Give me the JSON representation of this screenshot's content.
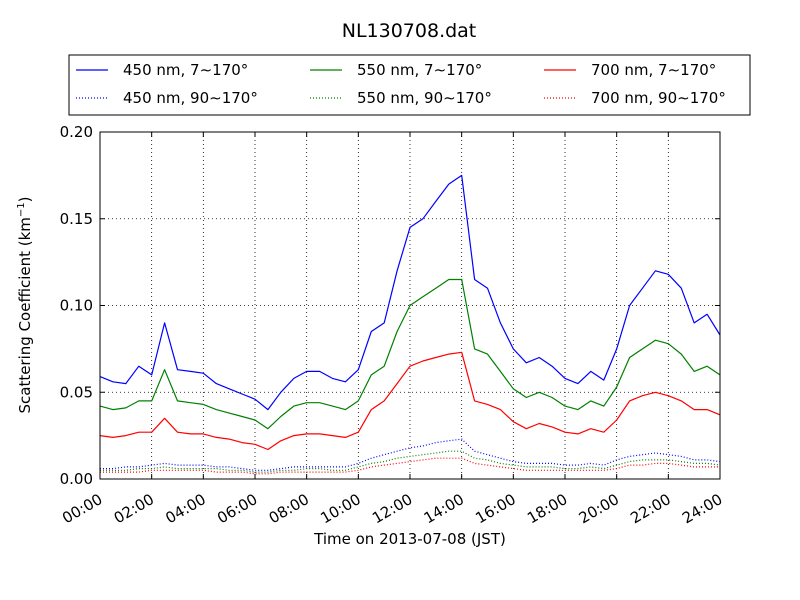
{
  "chart_data": {
    "type": "line",
    "title": "NL130708.dat",
    "xlabel": "Time on 2013-07-08 (JST)",
    "ylabel_main": "Scattering Coefficient (km",
    "ylabel_sup": "−1",
    "ylabel_tail": ")",
    "xlim": [
      0,
      24
    ],
    "ylim": [
      0.0,
      0.2
    ],
    "x_ticks": [
      0,
      2,
      4,
      6,
      8,
      10,
      12,
      14,
      16,
      18,
      20,
      22,
      24
    ],
    "x_tick_labels": [
      "00:00",
      "02:00",
      "04:00",
      "06:00",
      "08:00",
      "10:00",
      "12:00",
      "14:00",
      "16:00",
      "18:00",
      "20:00",
      "22:00",
      "24:00"
    ],
    "y_ticks": [
      0.0,
      0.05,
      0.1,
      0.15,
      0.2
    ],
    "y_tick_labels": [
      "0.00",
      "0.05",
      "0.10",
      "0.15",
      "0.20"
    ],
    "grid": true,
    "legend_placement": "above plot",
    "x": [
      0,
      0.5,
      1,
      1.5,
      2,
      2.5,
      3,
      3.5,
      4,
      4.5,
      5,
      5.5,
      6,
      6.5,
      7,
      7.5,
      8,
      8.5,
      9,
      9.5,
      10,
      10.5,
      11,
      11.5,
      12,
      12.5,
      13,
      13.5,
      14,
      14.5,
      15,
      15.5,
      16,
      16.5,
      17,
      17.5,
      18,
      18.5,
      19,
      19.5,
      20,
      20.5,
      21,
      21.5,
      22,
      22.5,
      23,
      23.5,
      24
    ],
    "series": [
      {
        "name": "450 nm, 7∼170°",
        "color": "#0000ff",
        "style": "solid",
        "values": [
          0.059,
          0.056,
          0.055,
          0.065,
          0.06,
          0.09,
          0.063,
          0.062,
          0.061,
          0.055,
          0.052,
          0.049,
          0.046,
          0.04,
          0.05,
          0.058,
          0.062,
          0.062,
          0.058,
          0.056,
          0.063,
          0.085,
          0.09,
          0.12,
          0.145,
          0.15,
          0.16,
          0.17,
          0.175,
          0.115,
          0.11,
          0.09,
          0.075,
          0.067,
          0.07,
          0.065,
          0.058,
          0.055,
          0.062,
          0.057,
          0.075,
          0.1,
          0.11,
          0.12,
          0.118,
          0.11,
          0.09,
          0.095,
          0.083
        ]
      },
      {
        "name": "450 nm, 90∼170°",
        "color": "#0000ff",
        "style": "dotted",
        "values": [
          0.006,
          0.006,
          0.007,
          0.007,
          0.008,
          0.009,
          0.008,
          0.008,
          0.008,
          0.007,
          0.007,
          0.006,
          0.005,
          0.005,
          0.006,
          0.007,
          0.007,
          0.007,
          0.007,
          0.007,
          0.009,
          0.012,
          0.014,
          0.016,
          0.018,
          0.019,
          0.021,
          0.022,
          0.023,
          0.016,
          0.014,
          0.012,
          0.01,
          0.009,
          0.009,
          0.009,
          0.008,
          0.008,
          0.009,
          0.008,
          0.011,
          0.013,
          0.014,
          0.015,
          0.014,
          0.013,
          0.011,
          0.011,
          0.01
        ]
      },
      {
        "name": "550 nm, 7∼170°",
        "color": "#008000",
        "style": "solid",
        "values": [
          0.042,
          0.04,
          0.041,
          0.045,
          0.045,
          0.063,
          0.045,
          0.044,
          0.043,
          0.04,
          0.038,
          0.036,
          0.034,
          0.029,
          0.036,
          0.042,
          0.044,
          0.044,
          0.042,
          0.04,
          0.045,
          0.06,
          0.065,
          0.085,
          0.1,
          0.105,
          0.11,
          0.115,
          0.115,
          0.075,
          0.072,
          0.062,
          0.052,
          0.047,
          0.05,
          0.047,
          0.042,
          0.04,
          0.045,
          0.042,
          0.053,
          0.07,
          0.075,
          0.08,
          0.078,
          0.072,
          0.062,
          0.065,
          0.06
        ]
      },
      {
        "name": "550 nm, 90∼170°",
        "color": "#008000",
        "style": "dotted",
        "values": [
          0.005,
          0.005,
          0.005,
          0.006,
          0.006,
          0.007,
          0.006,
          0.006,
          0.006,
          0.006,
          0.005,
          0.005,
          0.004,
          0.004,
          0.005,
          0.005,
          0.006,
          0.006,
          0.005,
          0.005,
          0.007,
          0.009,
          0.01,
          0.012,
          0.013,
          0.014,
          0.015,
          0.016,
          0.016,
          0.012,
          0.011,
          0.009,
          0.008,
          0.007,
          0.007,
          0.007,
          0.006,
          0.006,
          0.007,
          0.006,
          0.008,
          0.01,
          0.011,
          0.011,
          0.011,
          0.01,
          0.009,
          0.009,
          0.008
        ]
      },
      {
        "name": "700 nm, 7∼170°",
        "color": "#ff0000",
        "style": "solid",
        "values": [
          0.025,
          0.024,
          0.025,
          0.027,
          0.027,
          0.035,
          0.027,
          0.026,
          0.026,
          0.024,
          0.023,
          0.021,
          0.02,
          0.017,
          0.022,
          0.025,
          0.026,
          0.026,
          0.025,
          0.024,
          0.027,
          0.04,
          0.045,
          0.055,
          0.065,
          0.068,
          0.07,
          0.072,
          0.073,
          0.045,
          0.043,
          0.04,
          0.033,
          0.029,
          0.032,
          0.03,
          0.027,
          0.026,
          0.029,
          0.027,
          0.034,
          0.045,
          0.048,
          0.05,
          0.048,
          0.045,
          0.04,
          0.04,
          0.037
        ]
      },
      {
        "name": "700 nm, 90∼170°",
        "color": "#ff0000",
        "style": "dotted",
        "values": [
          0.004,
          0.004,
          0.004,
          0.004,
          0.005,
          0.005,
          0.005,
          0.005,
          0.005,
          0.004,
          0.004,
          0.004,
          0.003,
          0.003,
          0.004,
          0.004,
          0.004,
          0.004,
          0.004,
          0.004,
          0.005,
          0.007,
          0.008,
          0.009,
          0.01,
          0.011,
          0.012,
          0.012,
          0.012,
          0.009,
          0.008,
          0.007,
          0.006,
          0.005,
          0.005,
          0.005,
          0.005,
          0.005,
          0.005,
          0.005,
          0.006,
          0.008,
          0.008,
          0.009,
          0.009,
          0.008,
          0.007,
          0.007,
          0.007
        ]
      }
    ]
  }
}
